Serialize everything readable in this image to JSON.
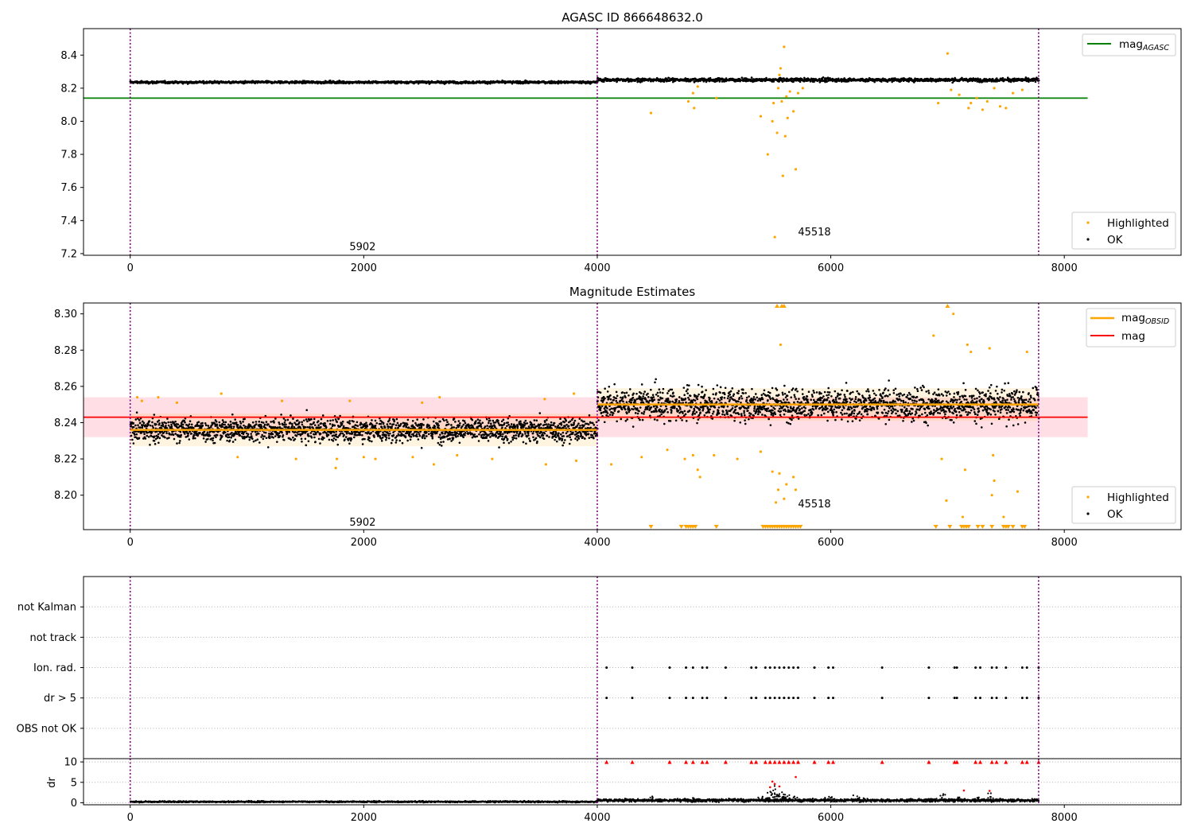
{
  "colors": {
    "ok": "#000000",
    "highlighted": "#ffa500",
    "mag_agasc": "#008000",
    "mag_obsid": "#ffa500",
    "mag": "#ff0000",
    "band": "#ffc0cb",
    "obsid_sep": "#800080",
    "dr_flag": "#ff0000"
  },
  "chart_data": [
    {
      "type": "scatter",
      "title": "AGASC ID 866648632.0",
      "xlim": [
        -400,
        9000
      ],
      "ylim": [
        7.19,
        8.56
      ],
      "x_ticks": [
        0,
        2000,
        4000,
        6000,
        8000
      ],
      "y_ticks": [
        7.2,
        7.4,
        7.6,
        7.8,
        8.0,
        8.2,
        8.4
      ],
      "y_tick_labels": [
        "7.2",
        "7.4",
        "7.6",
        "7.8",
        "8.0",
        "8.2",
        "8.4"
      ],
      "obsid_boundaries": [
        0,
        4000,
        7780
      ],
      "obsid_labels": [
        {
          "text": "5902",
          "x": 1990,
          "y": 7.24
        },
        {
          "text": "45518",
          "x": 5860,
          "y": 7.33
        }
      ],
      "mag_agasc": 8.14,
      "mag_agasc_x": [
        -400,
        8200
      ],
      "ok_segments": [
        {
          "x0": 0,
          "x1": 4000,
          "y": 8.236,
          "spread": 0.006
        },
        {
          "x0": 4000,
          "x1": 7780,
          "y": 8.25,
          "spread": 0.009
        }
      ],
      "highlighted": [
        [
          4460,
          8.05
        ],
        [
          4780,
          8.12
        ],
        [
          4820,
          8.17
        ],
        [
          4830,
          8.08
        ],
        [
          4860,
          8.21
        ],
        [
          5020,
          8.14
        ],
        [
          5400,
          8.03
        ],
        [
          5460,
          7.8
        ],
        [
          5500,
          8.0
        ],
        [
          5510,
          8.11
        ],
        [
          5520,
          7.3
        ],
        [
          5540,
          7.93
        ],
        [
          5550,
          8.2
        ],
        [
          5560,
          8.28
        ],
        [
          5570,
          8.32
        ],
        [
          5580,
          8.12
        ],
        [
          5590,
          7.67
        ],
        [
          5600,
          8.45
        ],
        [
          5610,
          7.91
        ],
        [
          5620,
          8.15
        ],
        [
          5630,
          8.02
        ],
        [
          5650,
          8.18
        ],
        [
          5680,
          8.06
        ],
        [
          5700,
          7.71
        ],
        [
          5720,
          8.17
        ],
        [
          5760,
          8.2
        ],
        [
          6920,
          8.11
        ],
        [
          7000,
          8.41
        ],
        [
          7030,
          8.19
        ],
        [
          7100,
          8.16
        ],
        [
          7180,
          8.08
        ],
        [
          7200,
          8.11
        ],
        [
          7250,
          8.14
        ],
        [
          7300,
          8.07
        ],
        [
          7340,
          8.12
        ],
        [
          7400,
          8.2
        ],
        [
          7450,
          8.09
        ],
        [
          7500,
          8.08
        ],
        [
          7560,
          8.17
        ],
        [
          7640,
          8.19
        ]
      ],
      "legend": [
        {
          "label": "mag",
          "subscript": "AGASC",
          "kind": "line",
          "color_key": "mag_agasc"
        },
        {
          "label": "Highlighted",
          "kind": "dot",
          "color_key": "highlighted"
        },
        {
          "label": "OK",
          "kind": "dot",
          "color_key": "ok"
        }
      ]
    },
    {
      "type": "scatter",
      "title": "Magnitude Estimates",
      "xlim": [
        -400,
        9000
      ],
      "ylim": [
        8.181,
        8.306
      ],
      "x_ticks": [
        0,
        2000,
        4000,
        6000,
        8000
      ],
      "y_ticks": [
        8.2,
        8.22,
        8.24,
        8.26,
        8.28,
        8.3
      ],
      "y_tick_labels": [
        "8.20",
        "8.22",
        "8.24",
        "8.26",
        "8.28",
        "8.30"
      ],
      "obsid_boundaries": [
        0,
        4000,
        7780
      ],
      "obsid_labels": [
        {
          "text": "5902",
          "x": 1990,
          "y": 8.185
        },
        {
          "text": "45518",
          "x": 5860,
          "y": 8.195
        }
      ],
      "mag": 8.243,
      "mag_band": [
        8.232,
        8.254
      ],
      "mag_x": [
        -400,
        8200
      ],
      "mag_obsid": [
        {
          "x0": 0,
          "x1": 4000,
          "y": 8.236
        },
        {
          "x0": 4000,
          "x1": 7780,
          "y": 8.25
        }
      ],
      "ok_segments": [
        {
          "x0": 0,
          "x1": 4000,
          "y": 8.236,
          "spread": 0.0055
        },
        {
          "x0": 4000,
          "x1": 7780,
          "y": 8.25,
          "spread": 0.0075
        }
      ],
      "highlighted": [
        [
          60,
          8.254
        ],
        [
          100,
          8.252
        ],
        [
          240,
          8.254
        ],
        [
          400,
          8.251
        ],
        [
          780,
          8.256
        ],
        [
          920,
          8.221
        ],
        [
          1300,
          8.252
        ],
        [
          1420,
          8.22
        ],
        [
          1760,
          8.215
        ],
        [
          1770,
          8.22
        ],
        [
          1880,
          8.252
        ],
        [
          2000,
          8.221
        ],
        [
          2100,
          8.22
        ],
        [
          2420,
          8.221
        ],
        [
          2500,
          8.251
        ],
        [
          2600,
          8.217
        ],
        [
          2650,
          8.254
        ],
        [
          2800,
          8.222
        ],
        [
          3100,
          8.22
        ],
        [
          3550,
          8.253
        ],
        [
          3560,
          8.217
        ],
        [
          3800,
          8.256
        ],
        [
          3820,
          8.219
        ],
        [
          4120,
          8.217
        ],
        [
          4380,
          8.221
        ],
        [
          4600,
          8.225
        ],
        [
          4750,
          8.22
        ],
        [
          4820,
          8.222
        ],
        [
          4860,
          8.214
        ],
        [
          4880,
          8.21
        ],
        [
          5000,
          8.222
        ],
        [
          5200,
          8.22
        ],
        [
          5400,
          8.224
        ],
        [
          5500,
          8.213
        ],
        [
          5530,
          8.196
        ],
        [
          5550,
          8.203
        ],
        [
          5560,
          8.212
        ],
        [
          5570,
          8.283
        ],
        [
          5600,
          8.198
        ],
        [
          5620,
          8.206
        ],
        [
          5680,
          8.21
        ],
        [
          5700,
          8.203
        ],
        [
          6880,
          8.288
        ],
        [
          6950,
          8.22
        ],
        [
          6990,
          8.197
        ],
        [
          7050,
          8.3
        ],
        [
          7130,
          8.188
        ],
        [
          7150,
          8.214
        ],
        [
          7170,
          8.283
        ],
        [
          7200,
          8.279
        ],
        [
          7360,
          8.281
        ],
        [
          7380,
          8.2
        ],
        [
          7390,
          8.222
        ],
        [
          7400,
          8.208
        ],
        [
          7480,
          8.188
        ],
        [
          7600,
          8.202
        ],
        [
          7680,
          8.279
        ]
      ],
      "clipped_top": [
        5540,
        5580,
        5600,
        7000
      ],
      "clipped_bottom": [
        4460,
        4720,
        4760,
        4780,
        4800,
        4820,
        4840,
        5020,
        5420,
        5440,
        5460,
        5480,
        5500,
        5520,
        5540,
        5560,
        5580,
        5600,
        5620,
        5640,
        5660,
        5680,
        5700,
        5720,
        5740,
        6900,
        7020,
        7120,
        7140,
        7160,
        7180,
        7260,
        7300,
        7380,
        7480,
        7500,
        7520,
        7560,
        7640,
        7660
      ],
      "legend_top": [
        {
          "label": "mag",
          "subscript": "OBSID",
          "kind": "line",
          "color_key": "mag_obsid"
        },
        {
          "label": "mag",
          "kind": "line",
          "color_key": "mag"
        }
      ],
      "legend_bottom": [
        {
          "label": "Highlighted",
          "kind": "dot",
          "color_key": "highlighted"
        },
        {
          "label": "OK",
          "kind": "dot",
          "color_key": "ok"
        }
      ]
    },
    {
      "type": "scatter",
      "title": "",
      "xlim": [
        -400,
        9000
      ],
      "categories": [
        "OBS not OK",
        "dr > 5",
        "Ion. rad.",
        "not track",
        "not Kalman"
      ],
      "obsid_boundaries": [
        0,
        4000,
        7780
      ],
      "flags": {
        "dr > 5": [
          4080,
          4300,
          4620,
          4760,
          4820,
          4900,
          4940,
          5100,
          5320,
          5360,
          5440,
          5480,
          5520,
          5560,
          5600,
          5640,
          5680,
          5720,
          5860,
          5980,
          6020,
          6440,
          6840,
          7060,
          7080,
          7240,
          7280,
          7380,
          7420,
          7500,
          7640,
          7680,
          7780
        ],
        "Ion. rad.": [
          4080,
          4300,
          4620,
          4760,
          4820,
          4900,
          4940,
          5100,
          5320,
          5360,
          5440,
          5480,
          5520,
          5560,
          5600,
          5640,
          5680,
          5720,
          5860,
          5980,
          6020,
          6440,
          6840,
          7060,
          7080,
          7240,
          7280,
          7380,
          7420,
          7500,
          7640,
          7680,
          7780
        ]
      }
    },
    {
      "type": "scatter",
      "title": "",
      "ylabel": "dr",
      "xlim": [
        -400,
        9000
      ],
      "x_ticks": [
        0,
        2000,
        4000,
        6000,
        8000
      ],
      "ylim": [
        -0.5,
        10.8
      ],
      "y_ticks": [
        0,
        5,
        10
      ],
      "y_tick_labels": [
        "0",
        "5",
        "10"
      ],
      "obsid_boundaries": [
        0,
        4000,
        7780
      ],
      "dr_segments": [
        {
          "x0": 0,
          "x1": 4000,
          "y": 0.25,
          "spread": 0.15
        },
        {
          "x0": 4000,
          "x1": 7780,
          "y": 0.6,
          "spread": 0.3
        }
      ],
      "dr_bumps": [
        [
          5400,
          1.5
        ],
        [
          5450,
          2.2
        ],
        [
          5480,
          3.2
        ],
        [
          5500,
          2.6
        ],
        [
          5520,
          4.1
        ],
        [
          5540,
          2.1
        ],
        [
          5560,
          3.5
        ],
        [
          5580,
          1.8
        ],
        [
          5600,
          2.4
        ],
        [
          5620,
          1.6
        ],
        [
          5660,
          2.0
        ],
        [
          5700,
          1.4
        ],
        [
          4480,
          1.6
        ],
        [
          4820,
          1.3
        ],
        [
          5980,
          1.6
        ],
        [
          6220,
          1.9
        ],
        [
          6260,
          1.5
        ],
        [
          6960,
          2.2
        ],
        [
          7100,
          1.6
        ],
        [
          7280,
          1.5
        ],
        [
          7360,
          2.8
        ],
        [
          7400,
          1.6
        ]
      ],
      "dr_red": [
        [
          5500,
          5.2
        ],
        [
          5520,
          4.6
        ],
        [
          5480,
          3.8
        ],
        [
          5560,
          4.0
        ],
        [
          5700,
          6.3
        ],
        [
          7140,
          3.0
        ],
        [
          7360,
          2.9
        ]
      ],
      "dr_capped": [
        4080,
        4300,
        4620,
        4760,
        4820,
        4900,
        4940,
        5100,
        5320,
        5360,
        5440,
        5480,
        5520,
        5560,
        5600,
        5640,
        5680,
        5720,
        5860,
        5980,
        6020,
        6440,
        6840,
        7060,
        7080,
        7240,
        7280,
        7380,
        7420,
        7500,
        7640,
        7680,
        7780
      ]
    }
  ]
}
